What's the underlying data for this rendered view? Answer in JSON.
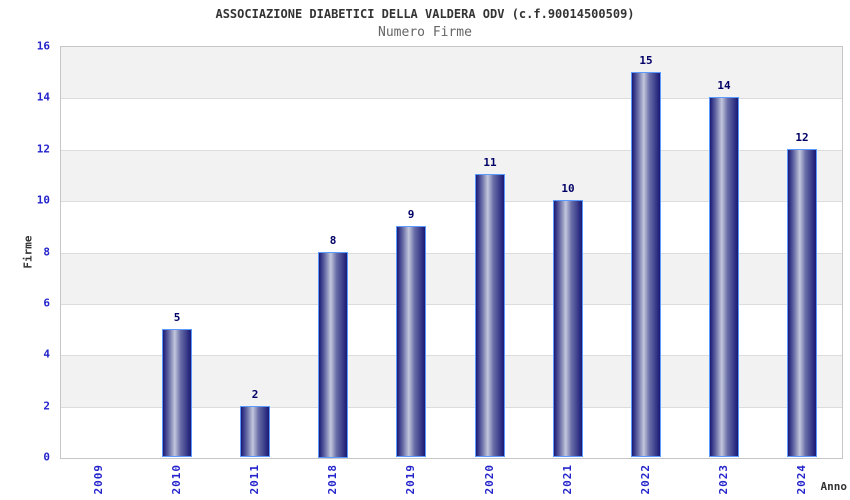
{
  "header": {
    "title": "ASSOCIAZIONE DIABETICI DELLA VALDERA ODV (c.f.90014500509)",
    "subtitle": "Numero Firme"
  },
  "chart_data": {
    "type": "bar",
    "title": "ASSOCIAZIONE DIABETICI DELLA VALDERA ODV (c.f.90014500509)",
    "subtitle": "Numero Firme",
    "categories": [
      "2009",
      "2010",
      "2011",
      "2018",
      "2019",
      "2020",
      "2021",
      "2022",
      "2023",
      "2024"
    ],
    "values": [
      0,
      5,
      2,
      8,
      9,
      11,
      10,
      15,
      14,
      12
    ],
    "xlabel": "Anno",
    "ylabel": "Firme",
    "ylim": [
      0,
      16
    ],
    "yticks": [
      0,
      2,
      4,
      6,
      8,
      10,
      12,
      14,
      16
    ],
    "grid": "alternating-horizontal-bands",
    "legend": "none",
    "bar_value_labels_shown": true
  },
  "colors": {
    "axis_text_blue": "#2424cc",
    "value_label_navy": "#000066",
    "title_text": "#333333",
    "subtitle_text": "#666666",
    "band_gray": "#f2f2f2",
    "band_white": "#ffffff",
    "gridline": "#dcdcdc",
    "plot_border": "#c6c6c6",
    "bar_dark": "#191975",
    "bar_mid": "#6a6fa8",
    "bar_light": "#c3c7dc",
    "bar_border": "#5b9bff"
  }
}
